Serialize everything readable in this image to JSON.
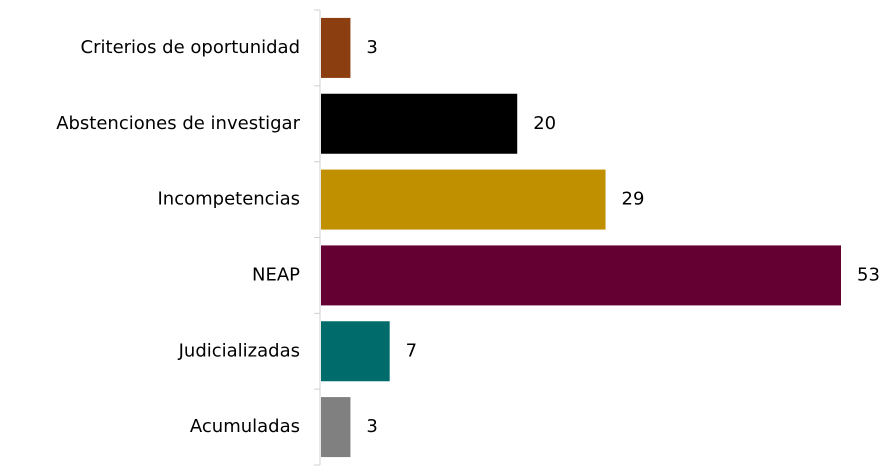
{
  "chart_data": {
    "type": "bar",
    "orientation": "horizontal",
    "categories": [
      "Criterios de oportunidad",
      "Abstenciones de investigar",
      "Incompetencias",
      "NEAP",
      "Judicializadas",
      "Acumuladas"
    ],
    "values": [
      3,
      20,
      29,
      53,
      7,
      3
    ],
    "colors": [
      "#8b3e0f",
      "#000000",
      "#c09000",
      "#650033",
      "#006b6b",
      "#808080"
    ]
  }
}
